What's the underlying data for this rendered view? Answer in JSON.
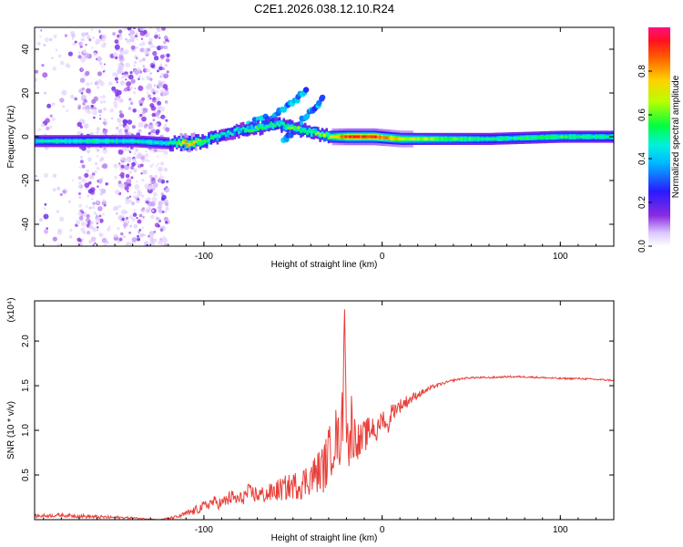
{
  "figure_title": "C2E1.2026.038.12.10.R24",
  "colors": {
    "snr_line": "#e8403a",
    "frame": "#000000",
    "background": "#ffffff"
  },
  "chart_data": [
    {
      "type": "heatmap",
      "title": "C2E1.2026.038.12.10.R24",
      "xlabel": "Height of straight line (km)",
      "ylabel": "Frequency (Hz)",
      "xlim": [
        -195,
        130
      ],
      "ylim": [
        -50,
        50
      ],
      "xticks": [
        -100,
        0,
        100
      ],
      "yticks": [
        -40,
        -20,
        0,
        20,
        40
      ],
      "xtick_labels": [
        "-100",
        "0",
        "100"
      ],
      "ytick_labels": [
        "-40",
        "-20",
        "0",
        "20",
        "40"
      ],
      "colorbar": {
        "label": "Normalized spectral amplitude",
        "range": [
          0.0,
          1.0
        ],
        "ticks": [
          0.0,
          0.2,
          0.4,
          0.6,
          0.8
        ],
        "tick_labels": [
          "0.0",
          "0.2",
          "0.4",
          "0.6",
          "0.8"
        ],
        "colormap": "rainbow (white-violet-blue-cyan-green-yellow-orange-red-magenta)"
      },
      "ridge": [
        {
          "x": -195,
          "y": -2,
          "a": 0.45
        },
        {
          "x": -160,
          "y": -2,
          "a": 0.5
        },
        {
          "x": -140,
          "y": -2,
          "a": 0.45
        },
        {
          "x": -120,
          "y": -3,
          "a": 0.45
        },
        {
          "x": -110,
          "y": -3,
          "a": 0.8
        },
        {
          "x": -100,
          "y": -2,
          "a": 0.55
        },
        {
          "x": -90,
          "y": 1,
          "a": 0.45
        },
        {
          "x": -80,
          "y": 3,
          "a": 0.45
        },
        {
          "x": -70,
          "y": 4,
          "a": 0.6
        },
        {
          "x": -60,
          "y": 6,
          "a": 0.5
        },
        {
          "x": -50,
          "y": 4,
          "a": 0.6
        },
        {
          "x": -40,
          "y": 2,
          "a": 0.55
        },
        {
          "x": -30,
          "y": 0,
          "a": 0.65
        },
        {
          "x": -20,
          "y": 0,
          "a": 0.9
        },
        {
          "x": -5,
          "y": 0,
          "a": 0.9
        },
        {
          "x": 10,
          "y": -1,
          "a": 0.7
        },
        {
          "x": 30,
          "y": -1,
          "a": 0.6
        },
        {
          "x": 60,
          "y": -1,
          "a": 0.5
        },
        {
          "x": 100,
          "y": 0,
          "a": 0.55
        },
        {
          "x": 130,
          "y": 0,
          "a": 0.5
        }
      ],
      "branches": [
        {
          "x": [
            -75,
            -60,
            -50,
            -42
          ],
          "y": [
            6,
            10,
            16,
            22
          ]
        },
        {
          "x": [
            -55,
            -48,
            -40,
            -32
          ],
          "y": [
            -2,
            5,
            12,
            18
          ]
        }
      ]
    },
    {
      "type": "line",
      "xlabel": "Height of straight line (km)",
      "ylabel": "SNR (10 * v/v)",
      "y_multiplier": "(x10⁴)",
      "xlim": [
        -195,
        130
      ],
      "ylim": [
        0,
        2.45
      ],
      "xticks": [
        -100,
        0,
        100
      ],
      "yticks": [
        0.5,
        1.0,
        1.5,
        2.0
      ],
      "xtick_labels": [
        "-100",
        "0",
        "100"
      ],
      "ytick_labels": [
        "0.5",
        "1.0",
        "1.5",
        "2.0"
      ],
      "series": [
        {
          "x": [
            -195,
            -180,
            -160,
            -140,
            -125,
            -115,
            -105,
            -100,
            -95,
            -90,
            -85,
            -80,
            -75,
            -70,
            -65,
            -60,
            -55,
            -50,
            -45,
            -40,
            -35,
            -32,
            -30,
            -28,
            -26,
            -24,
            -22,
            -21,
            -20,
            -19,
            -18,
            -17,
            -16,
            -15,
            -13,
            -11,
            -9,
            -7,
            -5,
            -3,
            -1,
            1,
            3,
            5,
            8,
            12,
            16,
            20,
            25,
            30,
            35,
            40,
            45,
            50,
            60,
            70,
            80,
            90,
            100,
            110,
            120,
            130
          ],
          "y": [
            0.04,
            0.05,
            0.03,
            0.02,
            0.0,
            0.03,
            0.1,
            0.15,
            0.2,
            0.18,
            0.25,
            0.22,
            0.3,
            0.28,
            0.28,
            0.32,
            0.35,
            0.38,
            0.4,
            0.48,
            0.55,
            0.6,
            0.75,
            0.8,
            0.95,
            0.85,
            1.2,
            2.45,
            1.1,
            0.9,
            0.7,
            1.3,
            0.8,
            1.0,
            0.85,
            0.9,
            0.95,
            1.0,
            1.05,
            0.95,
            1.1,
            1.15,
            1.0,
            1.2,
            1.25,
            1.3,
            1.35,
            1.4,
            1.45,
            1.5,
            1.53,
            1.56,
            1.58,
            1.59,
            1.59,
            1.6,
            1.6,
            1.59,
            1.58,
            1.58,
            1.57,
            1.56
          ],
          "noise": [
            0.02,
            0.02,
            0.02,
            0.01,
            0.0,
            0.02,
            0.05,
            0.06,
            0.07,
            0.07,
            0.09,
            0.08,
            0.1,
            0.1,
            0.1,
            0.12,
            0.14,
            0.15,
            0.18,
            0.2,
            0.25,
            0.3,
            0.3,
            0.3,
            0.32,
            0.3,
            0.35,
            0.05,
            0.35,
            0.3,
            0.3,
            0.3,
            0.3,
            0.28,
            0.2,
            0.2,
            0.18,
            0.16,
            0.15,
            0.12,
            0.12,
            0.1,
            0.1,
            0.1,
            0.08,
            0.08,
            0.06,
            0.04,
            0.03,
            0.02,
            0.015,
            0.012,
            0.01,
            0.01,
            0.01,
            0.01,
            0.01,
            0.01,
            0.01,
            0.01,
            0.01,
            0.01
          ]
        }
      ]
    }
  ]
}
